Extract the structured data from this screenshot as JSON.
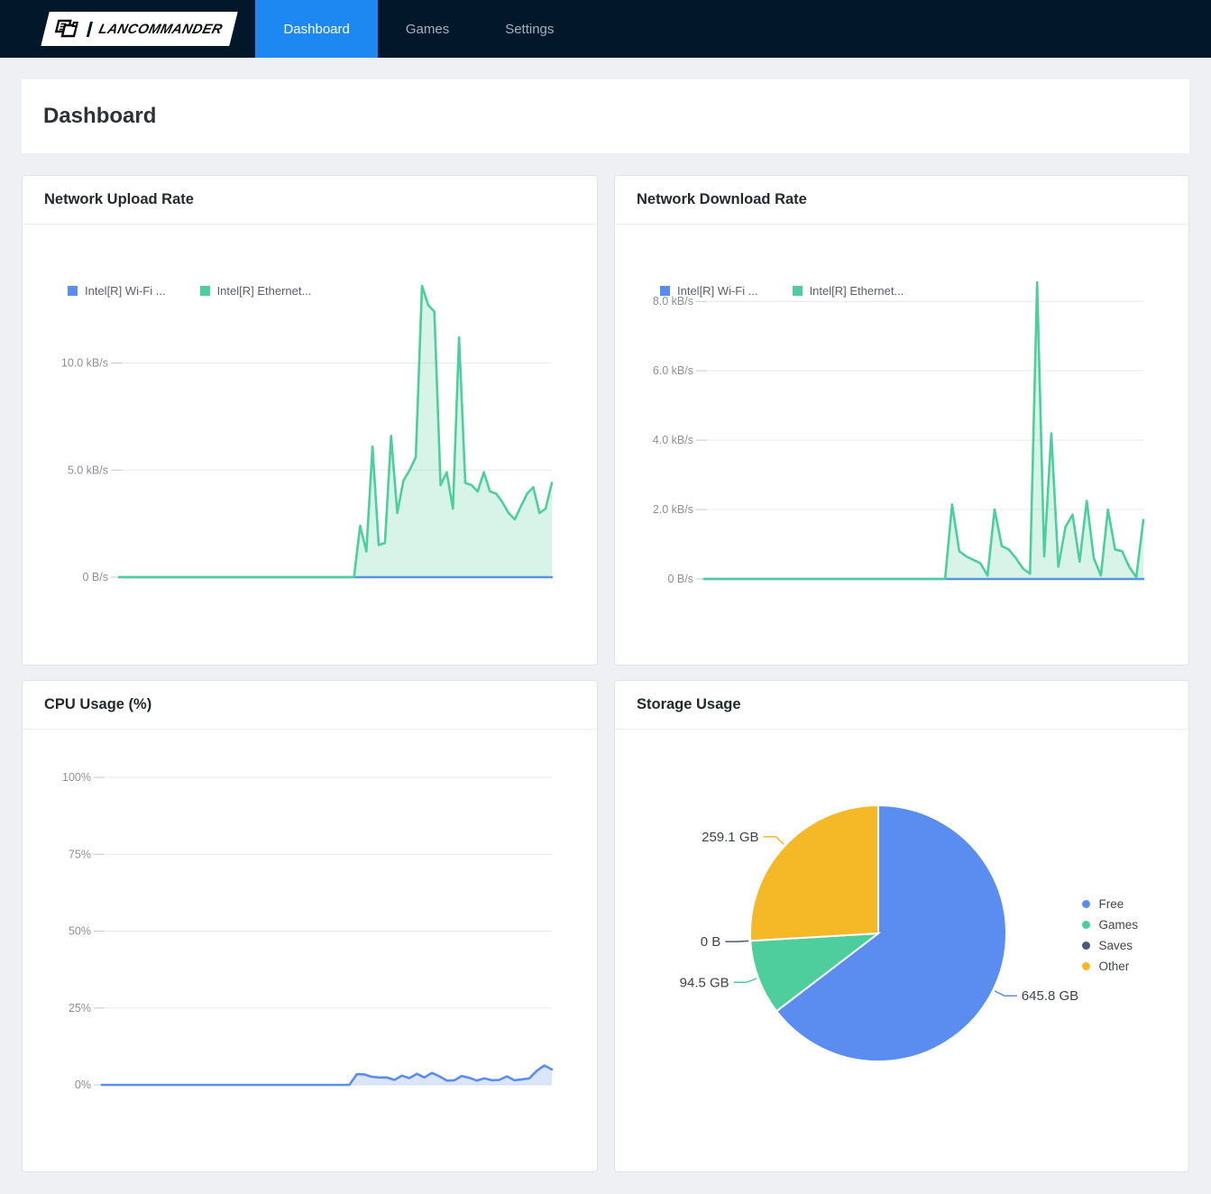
{
  "nav": {
    "brand": "LANCOMMANDER",
    "tabs": [
      {
        "label": "Dashboard",
        "active": true
      },
      {
        "label": "Games",
        "active": false
      },
      {
        "label": "Settings",
        "active": false
      }
    ]
  },
  "page": {
    "title": "Dashboard"
  },
  "colors": {
    "navbar_bg": "#02182a",
    "active_tab_blue": "#1e88f2",
    "nav_inactive_text": "#9fb3c0",
    "page_bg": "#eef0f4",
    "card_border": "#dfe3e8",
    "wifi_blue": "#5b8df0",
    "ethernet_green": "#4ece9c",
    "saves_slate": "#4a5a78",
    "other_amber": "#f5b826"
  },
  "chart_data": [
    {
      "type": "area",
      "title": "Network Upload Rate",
      "unit": "kB/s",
      "ylim": [
        0,
        13.6
      ],
      "grid": true,
      "legend_position": "top-left",
      "x_axis_labels": "hidden",
      "yticks": [
        {
          "v": 0,
          "label": "0 B/s"
        },
        {
          "v": 5,
          "label": "5.0 kB/s"
        },
        {
          "v": 10,
          "label": "10.0 kB/s"
        }
      ],
      "series": [
        {
          "name": "Intel[R] Wi-Fi ...",
          "color": "#5b8df0",
          "fill": "none",
          "values": [
            0,
            0,
            0,
            0,
            0,
            0,
            0,
            0,
            0,
            0,
            0,
            0,
            0,
            0,
            0,
            0,
            0,
            0,
            0,
            0,
            0,
            0,
            0,
            0,
            0,
            0,
            0,
            0,
            0,
            0,
            0,
            0,
            0,
            0,
            0,
            0,
            0,
            0,
            0,
            0,
            0,
            0,
            0,
            0,
            0,
            0,
            0,
            0,
            0,
            0,
            0,
            0,
            0,
            0,
            0,
            0,
            0,
            0,
            0,
            0,
            0,
            0,
            0,
            0,
            0,
            0,
            0,
            0,
            0,
            0,
            0
          ]
        },
        {
          "name": "Intel[R] Ethernet...",
          "color": "#4ece9c",
          "fill": "rgba(78,206,156,0.22)",
          "values": [
            0,
            0,
            0,
            0,
            0,
            0,
            0,
            0,
            0,
            0,
            0,
            0,
            0,
            0,
            0,
            0,
            0,
            0,
            0,
            0,
            0,
            0,
            0,
            0,
            0,
            0,
            0,
            0,
            0,
            0,
            0,
            0,
            0,
            0,
            0,
            0,
            0,
            0,
            0,
            2.4,
            1.2,
            6.1,
            1.5,
            1.6,
            6.6,
            3.0,
            4.5,
            5.0,
            5.6,
            13.6,
            12.7,
            12.4,
            4.3,
            4.9,
            3.2,
            11.2,
            4.4,
            4.3,
            4.0,
            4.9,
            4.0,
            3.9,
            3.5,
            3.0,
            2.7,
            3.3,
            3.9,
            4.2,
            3.0,
            3.2,
            4.4
          ]
        }
      ]
    },
    {
      "type": "area",
      "title": "Network Download Rate",
      "unit": "kB/s",
      "ylim": [
        0,
        8.55
      ],
      "grid": true,
      "legend_position": "top-left",
      "x_axis_labels": "hidden",
      "yticks": [
        {
          "v": 0,
          "label": "0 B/s"
        },
        {
          "v": 2,
          "label": "2.0 kB/s"
        },
        {
          "v": 4,
          "label": "4.0 kB/s"
        },
        {
          "v": 6,
          "label": "6.0 kB/s"
        },
        {
          "v": 8,
          "label": "8.0 kB/s"
        }
      ],
      "series": [
        {
          "name": "Intel[R] Wi-Fi ...",
          "color": "#5b8df0",
          "fill": "none",
          "values": [
            0,
            0,
            0,
            0,
            0,
            0,
            0,
            0,
            0,
            0,
            0,
            0,
            0,
            0,
            0,
            0,
            0,
            0,
            0,
            0,
            0,
            0,
            0,
            0,
            0,
            0,
            0,
            0,
            0,
            0,
            0,
            0,
            0,
            0,
            0,
            0,
            0,
            0,
            0,
            0,
            0,
            0,
            0,
            0,
            0,
            0,
            0,
            0,
            0,
            0,
            0,
            0,
            0,
            0,
            0,
            0,
            0,
            0,
            0,
            0,
            0,
            0,
            0
          ]
        },
        {
          "name": "Intel[R] Ethernet...",
          "color": "#4ece9c",
          "fill": "rgba(78,206,156,0.22)",
          "values": [
            0,
            0,
            0,
            0,
            0,
            0,
            0,
            0,
            0,
            0,
            0,
            0,
            0,
            0,
            0,
            0,
            0,
            0,
            0,
            0,
            0,
            0,
            0,
            0,
            0,
            0,
            0,
            0,
            0,
            0,
            0,
            0,
            0,
            0,
            0,
            2.15,
            0.8,
            0.65,
            0.55,
            0.45,
            0.1,
            2.0,
            0.95,
            0.85,
            0.6,
            0.3,
            0.15,
            8.55,
            0.65,
            4.2,
            0.35,
            1.5,
            1.85,
            0.5,
            2.25,
            0.6,
            0.1,
            2.0,
            0.85,
            0.8,
            0.35,
            0.05,
            1.7
          ]
        }
      ]
    },
    {
      "type": "area",
      "title": "CPU Usage (%)",
      "unit": "%",
      "ylim": [
        0,
        100
      ],
      "grid": true,
      "legend_position": "none",
      "x_axis_labels": "hidden",
      "yticks": [
        {
          "v": 0,
          "label": "0%"
        },
        {
          "v": 25,
          "label": "25%"
        },
        {
          "v": 50,
          "label": "50%"
        },
        {
          "v": 75,
          "label": "75%"
        },
        {
          "v": 100,
          "label": "100%"
        }
      ],
      "series": [
        {
          "name": "CPU",
          "color": "#5b8df0",
          "fill": "rgba(91,141,240,0.22)",
          "values": [
            0,
            0,
            0,
            0,
            0,
            0,
            0,
            0,
            0,
            0,
            0,
            0,
            0,
            0,
            0,
            0,
            0,
            0,
            0,
            0,
            0,
            0,
            0,
            0,
            0,
            0,
            0,
            0,
            0,
            0,
            0,
            0,
            0,
            0,
            3.5,
            3.4,
            2.6,
            2.4,
            2.4,
            1.6,
            3.0,
            2.2,
            3.6,
            2.4,
            3.9,
            2.8,
            1.4,
            1.5,
            2.9,
            2.3,
            1.4,
            2.1,
            1.5,
            1.6,
            2.8,
            1.5,
            1.8,
            2.1,
            4.6,
            6.3,
            5.0
          ]
        }
      ]
    },
    {
      "type": "pie",
      "title": "Storage Usage",
      "unit": "GB",
      "categories": [
        "Free",
        "Games",
        "Saves",
        "Other"
      ],
      "values": [
        645.8,
        94.5,
        0,
        259.1
      ],
      "value_labels": [
        "645.8 GB",
        "94.5 GB",
        "0 B",
        "259.1 GB"
      ],
      "colors": [
        "#5b8df0",
        "#4ece9c",
        "#4a5a78",
        "#f5b826"
      ],
      "legend_position": "right",
      "start_angle": "top",
      "direction": "clockwise"
    }
  ]
}
